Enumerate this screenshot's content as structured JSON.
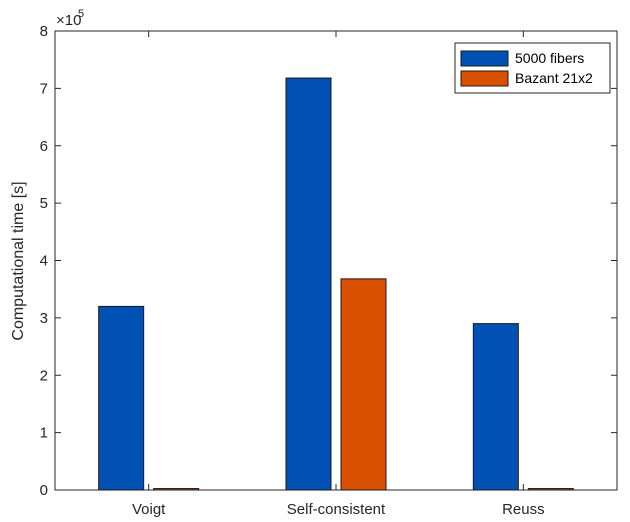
{
  "chart_data": {
    "type": "bar",
    "categories": [
      "Voigt",
      "Self-consistent",
      "Reuss"
    ],
    "series": [
      {
        "name": "5000 fibers",
        "values": [
          320000,
          718000,
          290000
        ],
        "color": "#0051B3"
      },
      {
        "name": "Bazant 21x2",
        "values": [
          2500,
          368000,
          2500
        ],
        "color": "#D95000"
      }
    ],
    "title": "",
    "xlabel": "",
    "ylabel": "Computational time [s]",
    "ylim": [
      0,
      800000
    ],
    "yticks": [
      0,
      1,
      2,
      3,
      4,
      5,
      6,
      7,
      8
    ],
    "y_exponent_label": "×10",
    "y_exponent": "5",
    "legend_position": "top-right",
    "grid": false
  }
}
